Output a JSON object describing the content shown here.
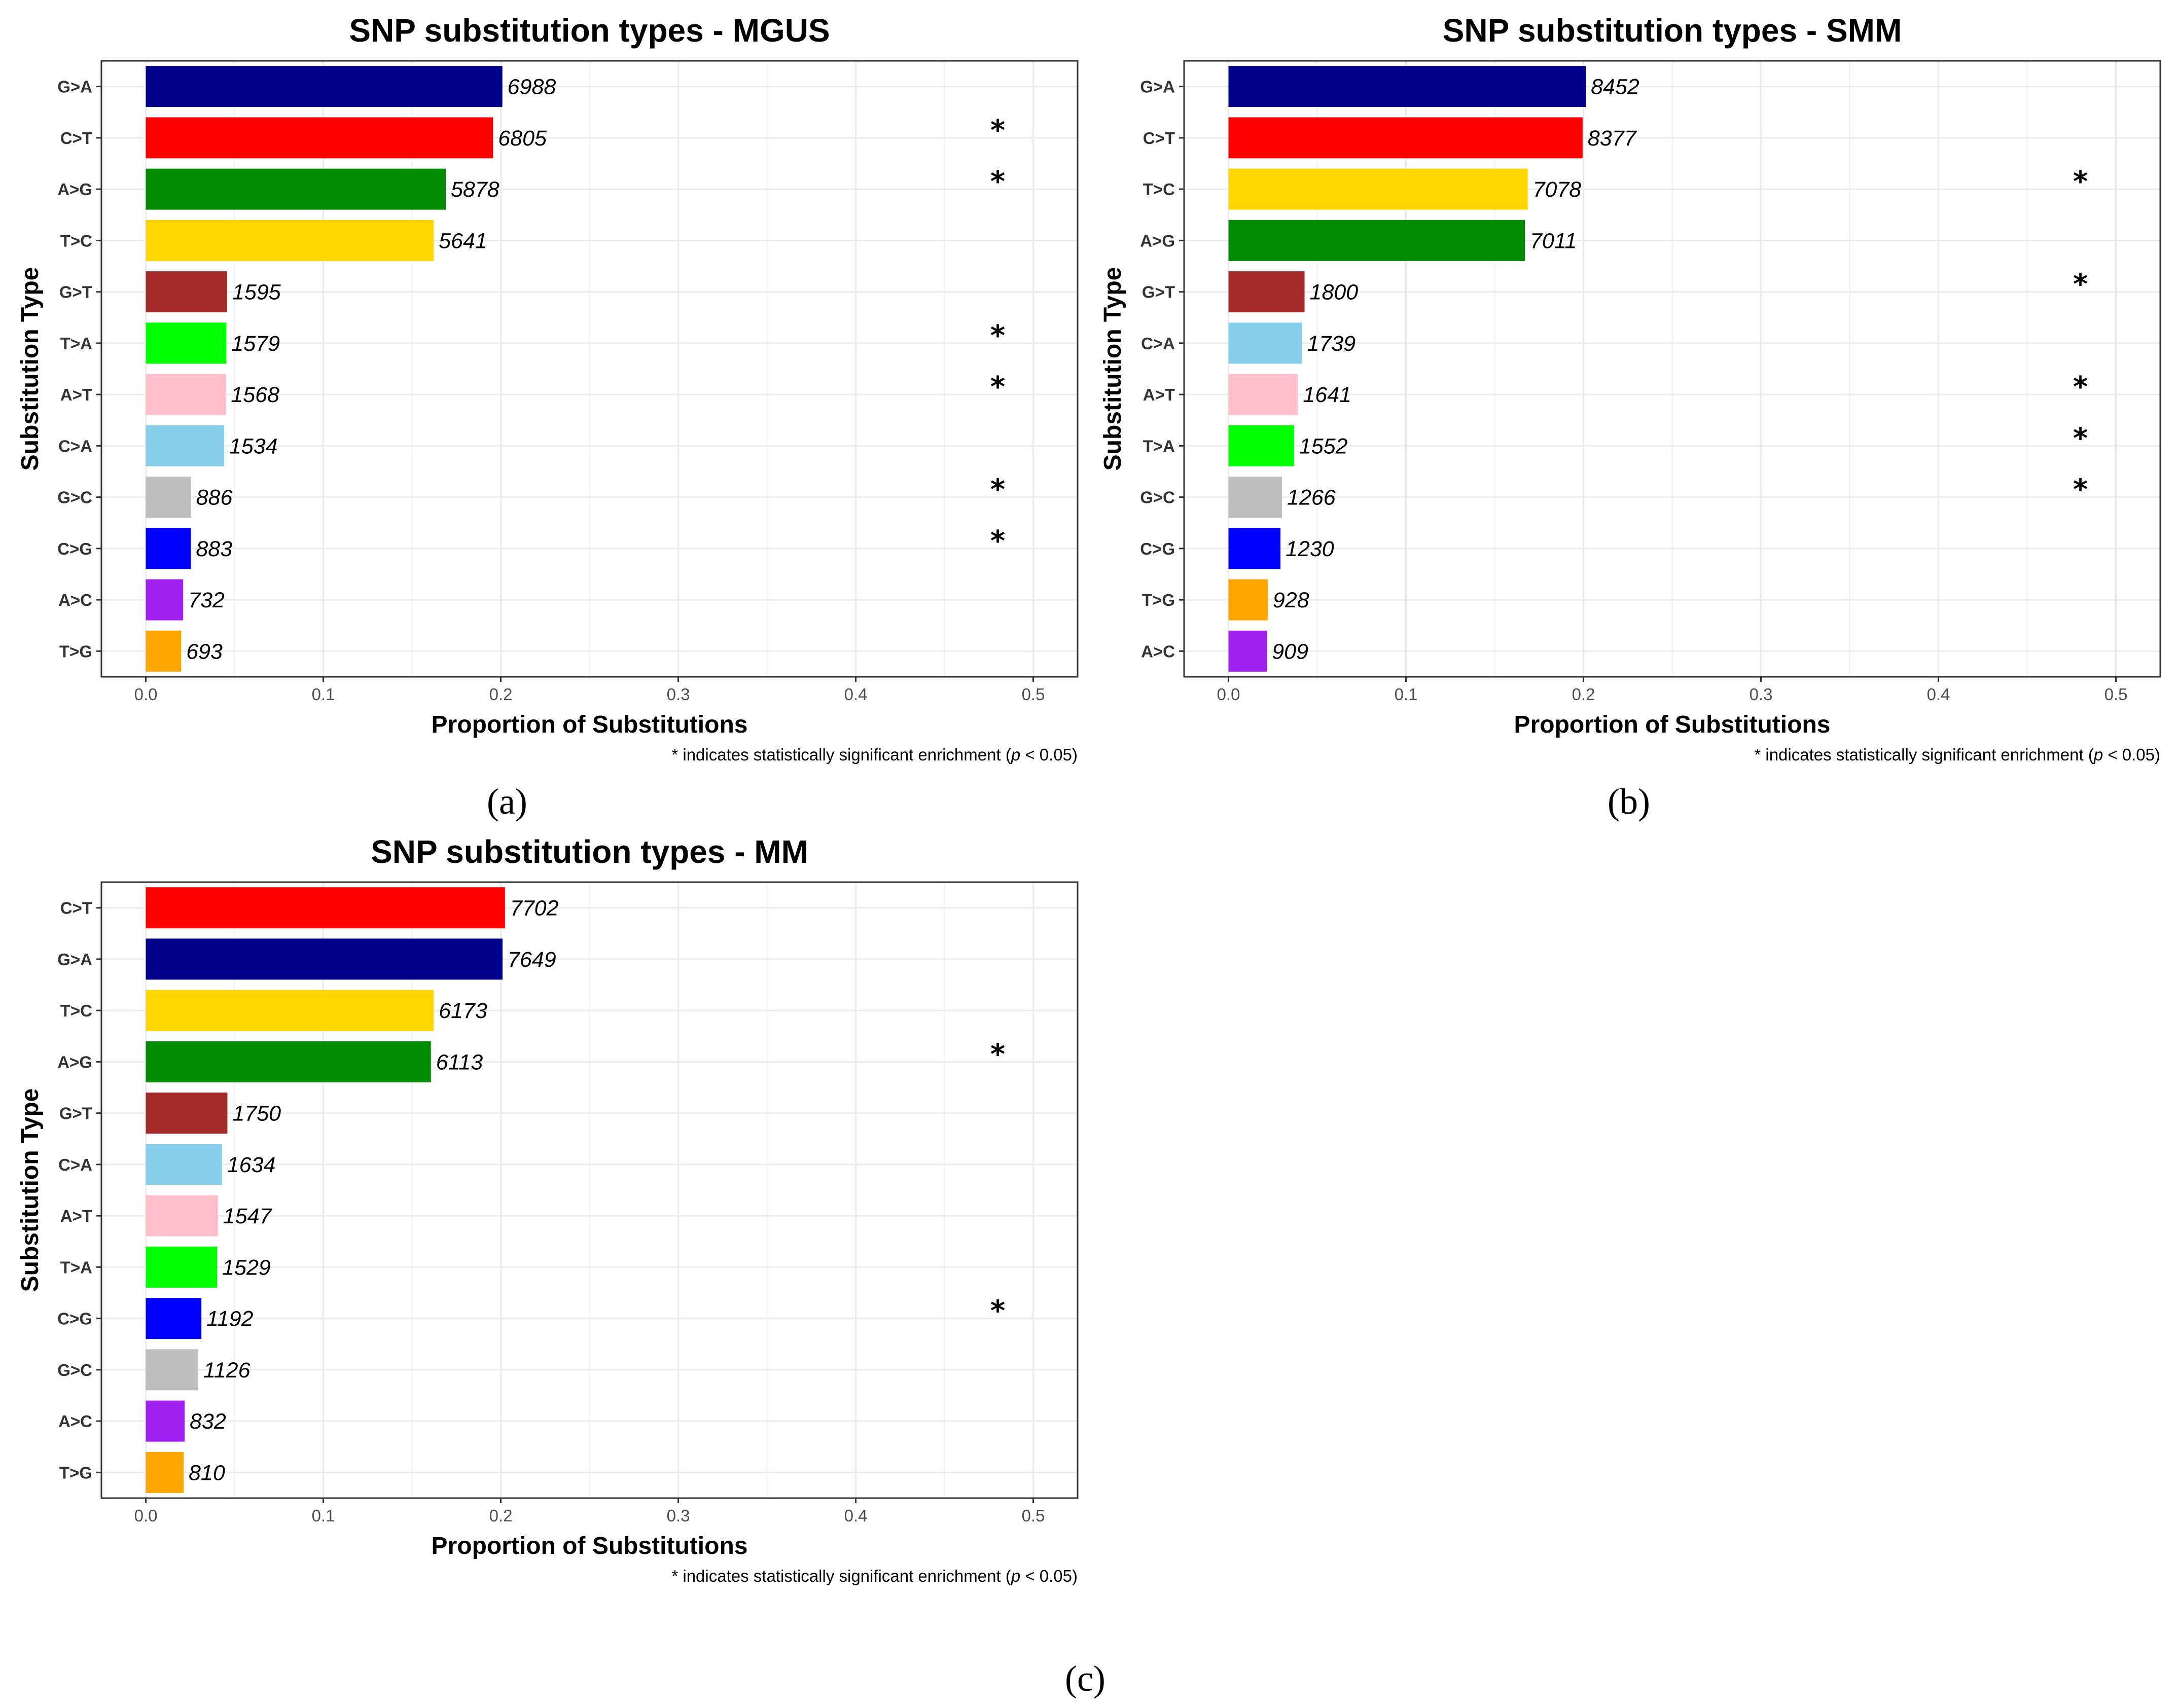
{
  "chart_data": [
    {
      "type": "bar",
      "orientation": "horizontal",
      "title": "SNP substitution types - MGUS",
      "xlabel": "Proportion of Substitutions",
      "ylabel": "Substitution Type",
      "xlim": [
        0,
        0.5
      ],
      "xticks": [
        "0.0",
        "0.1",
        "0.2",
        "0.3",
        "0.4",
        "0.5"
      ],
      "grid": true,
      "categories": [
        "G>A",
        "C>T",
        "A>G",
        "T>C",
        "G>T",
        "T>A",
        "A>T",
        "C>A",
        "G>C",
        "C>G",
        "A>C",
        "T>G"
      ],
      "counts": [
        6988,
        6805,
        5878,
        5641,
        1595,
        1579,
        1568,
        1534,
        886,
        883,
        732,
        693
      ],
      "significant": [
        false,
        true,
        true,
        false,
        false,
        true,
        true,
        false,
        true,
        true,
        false,
        false
      ],
      "colors": [
        "#00008B",
        "#FF0000",
        "#008B00",
        "#FFD700",
        "#A52A2A",
        "#00FF00",
        "#FFC0CB",
        "#87CEEB",
        "#BEBEBE",
        "#0000FF",
        "#A020F0",
        "#FFA500"
      ],
      "footnote_pre": "* indicates statistically significant enrichment (",
      "footnote_p": "p",
      "footnote_post": " < 0.05)"
    },
    {
      "type": "bar",
      "orientation": "horizontal",
      "title": "SNP substitution types - SMM",
      "xlabel": "Proportion of Substitutions",
      "ylabel": "Substitution Type",
      "xlim": [
        0,
        0.5
      ],
      "xticks": [
        "0.0",
        "0.1",
        "0.2",
        "0.3",
        "0.4",
        "0.5"
      ],
      "grid": true,
      "categories": [
        "G>A",
        "C>T",
        "T>C",
        "A>G",
        "G>T",
        "C>A",
        "A>T",
        "T>A",
        "G>C",
        "C>G",
        "T>G",
        "A>C"
      ],
      "counts": [
        8452,
        8377,
        7078,
        7011,
        1800,
        1739,
        1641,
        1552,
        1266,
        1230,
        928,
        909
      ],
      "significant": [
        false,
        false,
        true,
        false,
        true,
        false,
        true,
        true,
        true,
        false,
        false,
        false
      ],
      "colors": [
        "#00008B",
        "#FF0000",
        "#FFD700",
        "#008B00",
        "#A52A2A",
        "#87CEEB",
        "#FFC0CB",
        "#00FF00",
        "#BEBEBE",
        "#0000FF",
        "#FFA500",
        "#A020F0"
      ],
      "footnote_pre": "* indicates statistically significant enrichment (",
      "footnote_p": "p",
      "footnote_post": " < 0.05)"
    },
    {
      "type": "bar",
      "orientation": "horizontal",
      "title": "SNP substitution types - MM",
      "xlabel": "Proportion of Substitutions",
      "ylabel": "Substitution Type",
      "xlim": [
        0,
        0.5
      ],
      "xticks": [
        "0.0",
        "0.1",
        "0.2",
        "0.3",
        "0.4",
        "0.5"
      ],
      "grid": true,
      "categories": [
        "C>T",
        "G>A",
        "T>C",
        "A>G",
        "G>T",
        "C>A",
        "A>T",
        "T>A",
        "C>G",
        "G>C",
        "A>C",
        "T>G"
      ],
      "counts": [
        7702,
        7649,
        6173,
        6113,
        1750,
        1634,
        1547,
        1529,
        1192,
        1126,
        832,
        810
      ],
      "significant": [
        false,
        false,
        false,
        true,
        false,
        false,
        false,
        false,
        true,
        false,
        false,
        false
      ],
      "colors": [
        "#FF0000",
        "#00008B",
        "#FFD700",
        "#008B00",
        "#A52A2A",
        "#87CEEB",
        "#FFC0CB",
        "#00FF00",
        "#0000FF",
        "#BEBEBE",
        "#A020F0",
        "#FFA500"
      ],
      "footnote_pre": "* indicates statistically significant enrichment (",
      "footnote_p": "p",
      "footnote_post": " < 0.05)"
    }
  ],
  "panel_labels": [
    "(a)",
    "(b)",
    "(c)"
  ]
}
